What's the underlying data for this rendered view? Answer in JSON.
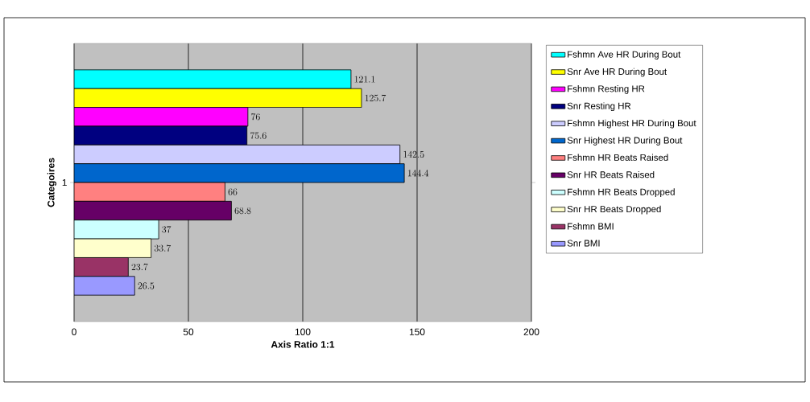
{
  "chart_data": {
    "type": "bar",
    "orientation": "horizontal",
    "xlabel": "Axis Ratio 1:1",
    "ylabel": "Categoires",
    "categories": [
      "1"
    ],
    "series": [
      {
        "name": "Fshmn Ave HR During Bout",
        "color": "#00ffff",
        "values": [
          121.1
        ]
      },
      {
        "name": "Snr Ave HR During Bout",
        "color": "#ffff00",
        "values": [
          125.7
        ]
      },
      {
        "name": "Fshmn Resting HR",
        "color": "#ff00ff",
        "values": [
          76
        ]
      },
      {
        "name": "Snr Resting HR",
        "color": "#000080",
        "values": [
          75.6
        ]
      },
      {
        "name": "Fshmn Highest HR During Bout",
        "color": "#ccccff",
        "values": [
          142.5
        ]
      },
      {
        "name": "Snr Highest HR During Bout",
        "color": "#0066cc",
        "values": [
          144.4
        ]
      },
      {
        "name": "Fshmn HR Beats Raised",
        "color": "#ff8080",
        "values": [
          66
        ]
      },
      {
        "name": "Snr HR Beats Raised",
        "color": "#660066",
        "values": [
          68.8
        ]
      },
      {
        "name": "Fshmn HR Beats Dropped",
        "color": "#ccffff",
        "values": [
          37
        ]
      },
      {
        "name": "Snr HR Beats Dropped",
        "color": "#ffffcc",
        "values": [
          33.7
        ]
      },
      {
        "name": "Fshmn BMI",
        "color": "#993366",
        "values": [
          23.7
        ]
      },
      {
        "name": "Snr BMI",
        "color": "#9999ff",
        "values": [
          26.5
        ]
      }
    ],
    "xlim": [
      0,
      200
    ],
    "xticks": [
      0,
      50,
      100,
      150,
      200
    ],
    "grid": "x",
    "legend": "right",
    "data_labels": true
  }
}
